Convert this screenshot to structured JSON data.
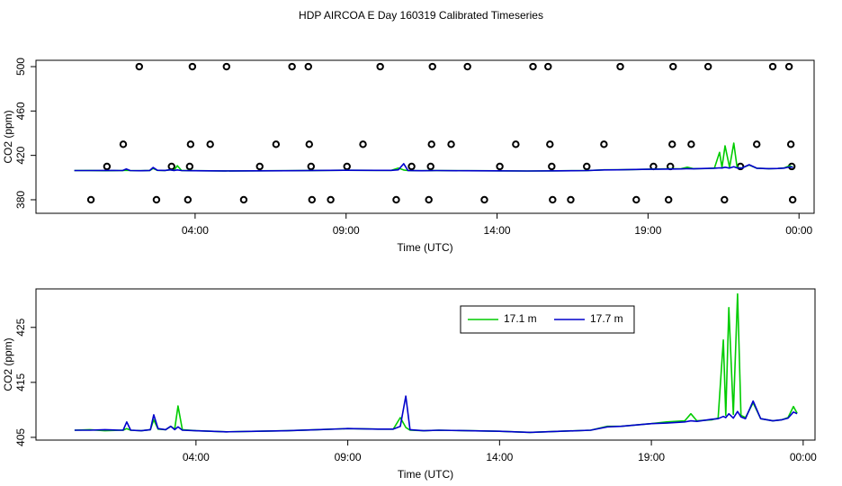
{
  "title": "HDP AIRCOA E  Day 160319  Calibrated Timeseries",
  "chart_data": [
    {
      "type": "line",
      "xlabel": "Time (UTC)",
      "ylabel": "CO2 (ppm)",
      "xlim": [
        -1.27,
        24.5
      ],
      "ylim": [
        367.8,
        505.7
      ],
      "xticks": [
        {
          "value": 4,
          "label": "04:00"
        },
        {
          "value": 9,
          "label": "09:00"
        },
        {
          "value": 14,
          "label": "14:00"
        },
        {
          "value": 19,
          "label": "19:00"
        },
        {
          "value": 24,
          "label": "00:00"
        }
      ],
      "yticks": [
        380,
        420,
        460,
        500
      ],
      "x": [
        0,
        0.5,
        1,
        1.5,
        1.6,
        1.72,
        1.85,
        2.2,
        2.5,
        2.61,
        2.75,
        3.0,
        3.17,
        3.3,
        3.41,
        3.55,
        4,
        5,
        6,
        7,
        8,
        9,
        10,
        10.5,
        10.73,
        10.91,
        11.05,
        11.5,
        12,
        13,
        14,
        15,
        16,
        17,
        17.55,
        18,
        19,
        19.5,
        20.1,
        20.3,
        20.5,
        21,
        21.2,
        21.37,
        21.45,
        21.55,
        21.7,
        21.84,
        21.95,
        22.1,
        22.35,
        22.6,
        23,
        23.3,
        23.5,
        23.68,
        23.8
      ],
      "series": [
        {
          "type": "scatter",
          "color": "#000000",
          "x": [
            2.15,
            3.91,
            5.04,
            7.21,
            7.75,
            10.13,
            11.86,
            13.02,
            15.19,
            15.69,
            18.08,
            19.83,
            20.99,
            23.13,
            23.67,
            1.62,
            3.85,
            4.5,
            6.68,
            7.78,
            9.56,
            11.83,
            12.48,
            14.62,
            15.75,
            17.54,
            19.8,
            20.43,
            22.6,
            23.73,
            1.08,
            3.22,
            3.82,
            6.14,
            7.84,
            9.03,
            11.17,
            11.8,
            14.09,
            15.81,
            16.97,
            19.18,
            19.74,
            22.06,
            23.76,
            0.55,
            2.72,
            3.76,
            5.61,
            7.87,
            8.49,
            10.66,
            11.74,
            13.58,
            15.84,
            16.44,
            18.61,
            19.68,
            21.53,
            23.79
          ],
          "values": [
            500,
            500,
            500,
            500,
            500,
            500,
            500,
            500,
            500,
            500,
            500,
            500,
            500,
            500,
            500,
            430,
            430,
            430,
            430,
            430,
            430,
            430,
            430,
            430,
            430,
            430,
            430,
            430,
            430,
            430,
            410,
            410,
            410,
            410,
            410,
            410,
            410,
            410,
            410,
            410,
            410,
            410,
            410,
            410,
            410,
            380,
            380,
            380,
            380,
            380,
            380,
            380,
            380,
            380,
            380,
            380,
            380,
            380,
            380,
            380
          ]
        },
        {
          "color": "#00cc00",
          "values": [
            406.3,
            406.4,
            406.2,
            406.3,
            406.3,
            406.6,
            406.3,
            406.2,
            406.4,
            408.2,
            406.5,
            406.4,
            407.0,
            406.5,
            410.7,
            406.4,
            406.2,
            406.0,
            406.1,
            406.2,
            406.4,
            406.6,
            406.5,
            406.5,
            408.6,
            406.8,
            406.3,
            406.2,
            406.3,
            406.2,
            406.1,
            405.9,
            406.1,
            406.3,
            407.0,
            407.0,
            407.5,
            407.8,
            408.0,
            409.3,
            408.0,
            408.2,
            408.5,
            422.7,
            409.0,
            428.6,
            409.2,
            431.1,
            409.0,
            408.6,
            411.3,
            408.4,
            408.0,
            408.2,
            408.6,
            410.6,
            409.4
          ]
        },
        {
          "color": "#0000cc",
          "values": [
            406.3,
            406.3,
            406.4,
            406.3,
            406.3,
            407.8,
            406.3,
            406.2,
            406.4,
            409.1,
            406.6,
            406.4,
            407.0,
            406.4,
            406.9,
            406.3,
            406.2,
            406.0,
            406.1,
            406.2,
            406.4,
            406.6,
            406.5,
            406.5,
            407.0,
            412.5,
            406.4,
            406.2,
            406.3,
            406.2,
            406.1,
            405.9,
            406.1,
            406.3,
            406.9,
            407.0,
            407.5,
            407.6,
            407.8,
            408.0,
            407.9,
            408.3,
            408.4,
            408.8,
            408.6,
            409.3,
            408.5,
            409.7,
            408.7,
            408.4,
            411.6,
            408.4,
            408.0,
            408.2,
            408.5,
            409.6,
            409.3
          ]
        }
      ]
    },
    {
      "type": "line",
      "xlabel": "Time (UTC)",
      "ylabel": "CO2 (ppm)",
      "xlim": [
        -1.27,
        24.39
      ],
      "ylim": [
        404.5,
        432.0
      ],
      "xticks": [
        {
          "value": 4,
          "label": "04:00"
        },
        {
          "value": 9,
          "label": "09:00"
        },
        {
          "value": 14,
          "label": "14:00"
        },
        {
          "value": 19,
          "label": "19:00"
        },
        {
          "value": 24,
          "label": "00:00"
        }
      ],
      "yticks": [
        405,
        415,
        425
      ],
      "legend": "top",
      "x": [
        0,
        0.5,
        1,
        1.5,
        1.6,
        1.72,
        1.85,
        2.2,
        2.5,
        2.61,
        2.75,
        3.0,
        3.17,
        3.3,
        3.41,
        3.55,
        4,
        5,
        6,
        7,
        8,
        9,
        10,
        10.5,
        10.73,
        10.91,
        11.05,
        11.5,
        12,
        13,
        14,
        15,
        16,
        17,
        17.55,
        18,
        19,
        19.5,
        20.1,
        20.3,
        20.5,
        21,
        21.2,
        21.37,
        21.45,
        21.55,
        21.7,
        21.84,
        21.95,
        22.1,
        22.35,
        22.6,
        23,
        23.3,
        23.5,
        23.68,
        23.8
      ],
      "series": [
        {
          "name": "17.1 m",
          "color": "#00cc00",
          "values": [
            406.3,
            406.4,
            406.2,
            406.3,
            406.3,
            406.6,
            406.3,
            406.2,
            406.4,
            408.2,
            406.5,
            406.4,
            407.0,
            406.5,
            410.7,
            406.4,
            406.2,
            406.0,
            406.1,
            406.2,
            406.4,
            406.6,
            406.5,
            406.5,
            408.6,
            406.8,
            406.3,
            406.2,
            406.3,
            406.2,
            406.1,
            405.9,
            406.1,
            406.3,
            407.0,
            407.0,
            407.5,
            407.8,
            408.0,
            409.3,
            408.0,
            408.2,
            408.5,
            422.7,
            409.0,
            428.6,
            409.2,
            431.1,
            409.0,
            408.6,
            411.3,
            408.4,
            408.0,
            408.2,
            408.6,
            410.6,
            409.4
          ]
        },
        {
          "name": "17.7 m",
          "color": "#0000cc",
          "values": [
            406.3,
            406.3,
            406.4,
            406.3,
            406.3,
            407.8,
            406.3,
            406.2,
            406.4,
            409.1,
            406.6,
            406.4,
            407.0,
            406.4,
            406.9,
            406.3,
            406.2,
            406.0,
            406.1,
            406.2,
            406.4,
            406.6,
            406.5,
            406.5,
            407.0,
            412.5,
            406.4,
            406.2,
            406.3,
            406.2,
            406.1,
            405.9,
            406.1,
            406.3,
            406.9,
            407.0,
            407.5,
            407.6,
            407.8,
            408.0,
            407.9,
            408.3,
            408.4,
            408.8,
            408.6,
            409.3,
            408.5,
            409.7,
            408.7,
            408.4,
            411.6,
            408.4,
            408.0,
            408.2,
            408.5,
            409.6,
            409.3
          ]
        }
      ]
    }
  ]
}
